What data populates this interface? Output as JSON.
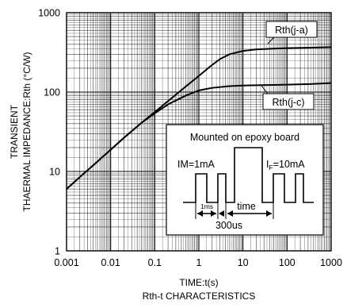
{
  "chart_data": {
    "type": "line",
    "xscale": "log",
    "yscale": "log",
    "xlim": [
      0.001,
      1000
    ],
    "ylim": [
      1,
      1000
    ],
    "grid": true,
    "x_ticks": [
      0.001,
      0.01,
      0.1,
      1,
      10,
      100,
      1000
    ],
    "x_tick_labels": [
      "0.001",
      "0.01",
      "0.1",
      "1",
      "10",
      "100",
      "1000"
    ],
    "y_ticks": [
      1,
      10,
      100,
      1000
    ],
    "y_tick_labels": [
      "1",
      "10",
      "100",
      "1000"
    ],
    "xlabel": "TIME:t(s)",
    "subtitle": "Rth-t CHARACTERISTICS",
    "ylabel_line1": "TRANSIENT",
    "ylabel_line2": "THAERMAL IMPEDANCE:Rth (°C/W)",
    "series": [
      {
        "name": "Rth(j-a)",
        "x": [
          0.001,
          0.002,
          0.005,
          0.01,
          0.02,
          0.05,
          0.1,
          0.2,
          0.5,
          1,
          2,
          3,
          5,
          10,
          20,
          50,
          100,
          300,
          1000
        ],
        "y": [
          6,
          8.5,
          13.3,
          18.8,
          26.5,
          41,
          56,
          77,
          117,
          160,
          220,
          260,
          300,
          330,
          345,
          353,
          358,
          362,
          368
        ]
      },
      {
        "name": "Rth(j-c)",
        "x": [
          0.001,
          0.002,
          0.005,
          0.01,
          0.02,
          0.05,
          0.1,
          0.2,
          0.5,
          1,
          2,
          5,
          10,
          20,
          50,
          100,
          300,
          1000
        ],
        "y": [
          6,
          8.5,
          13.3,
          18.8,
          26.5,
          41,
          54,
          70,
          90,
          105,
          113,
          119,
          121,
          122,
          123,
          124,
          126,
          130
        ]
      }
    ],
    "inset": {
      "title": "Mounted on epoxy board",
      "im_label": "IM=1mA",
      "if_label_main": "I",
      "if_label_sub": "F",
      "if_label_rest": "=10mA",
      "pulse_width_label": "1ms",
      "time_label": "time",
      "period_label": "300us"
    }
  }
}
